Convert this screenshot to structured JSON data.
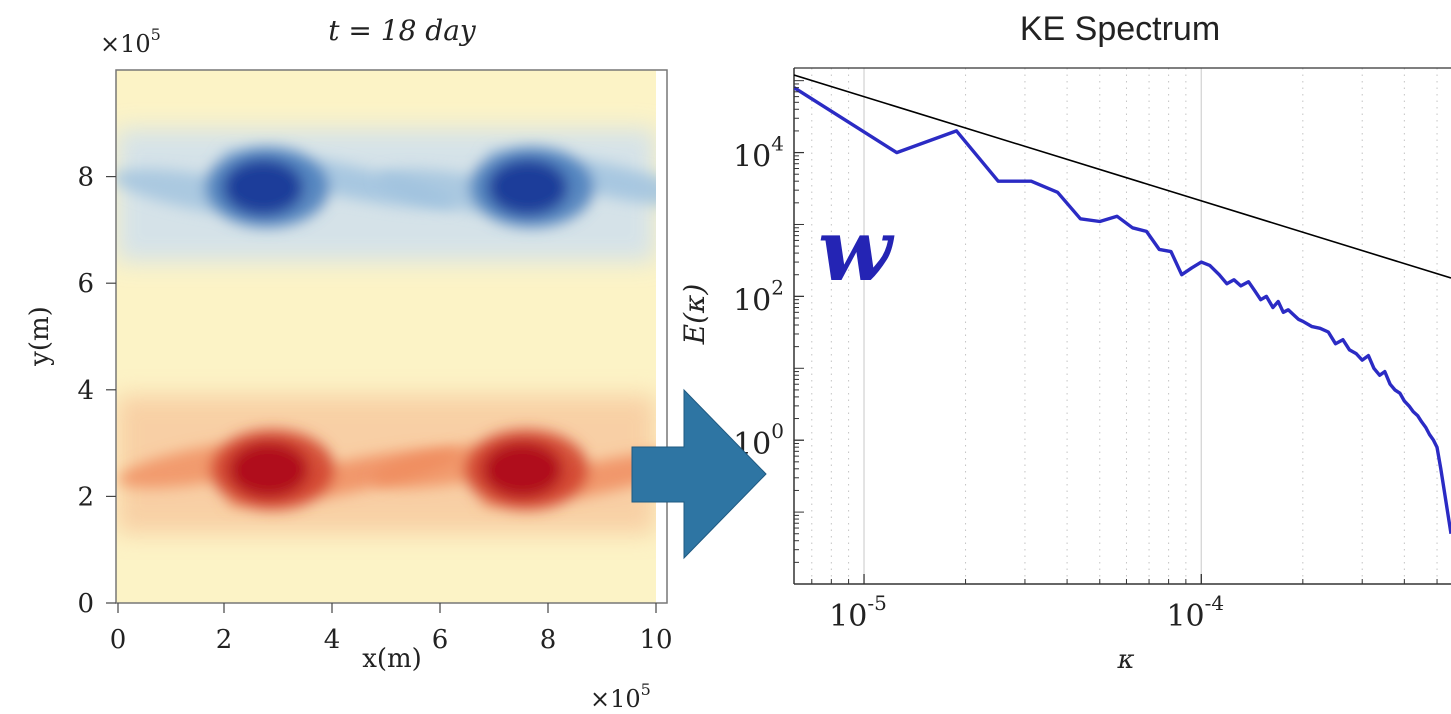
{
  "chart_data": [
    {
      "type": "heatmap",
      "title": "t = 18 day",
      "xlabel": "x(m)",
      "ylabel": "y(m)",
      "x_ticks": [
        "0",
        "2",
        "4",
        "6",
        "8",
        "10"
      ],
      "y_ticks": [
        "0",
        "2",
        "4",
        "6",
        "8"
      ],
      "x_exponent": "×10",
      "x_exponent_power": "5",
      "y_exponent": "×10",
      "y_exponent_power": "5",
      "xlim": [
        0,
        10
      ],
      "ylim": [
        0,
        10
      ],
      "colormap": "diverging red-yellow-blue",
      "colors": {
        "positive": "#b0101a",
        "neutral": "#fdf5cc",
        "negative": "#1f3d9a"
      },
      "features": [
        {
          "sign": "negative",
          "x": 2.8,
          "y": 7.8
        },
        {
          "sign": "negative",
          "x": 7.7,
          "y": 7.8
        },
        {
          "sign": "positive",
          "x": 2.9,
          "y": 2.5
        },
        {
          "sign": "positive",
          "x": 7.6,
          "y": 2.5
        }
      ]
    },
    {
      "type": "line",
      "title": "KE Spectrum",
      "xlabel": "κ",
      "ylabel": "E(κ)",
      "annotation": "w",
      "x_scale": "log",
      "y_scale": "log",
      "xlim": [
        6.2e-06,
        0.00055
      ],
      "ylim": [
        0.01,
        150000
      ],
      "x_ticks": [
        {
          "base": "10",
          "exp": "-5",
          "value": 1e-05
        },
        {
          "base": "10",
          "exp": "-4",
          "value": 0.0001
        }
      ],
      "y_ticks": [
        {
          "base": "10",
          "exp": "4",
          "value": 10000
        },
        {
          "base": "10",
          "exp": "2",
          "value": 100
        },
        {
          "base": "10",
          "exp": "0",
          "value": 1
        }
      ],
      "grid": true,
      "series": [
        {
          "color": "#2b2bc4",
          "x": [
            6.2e-06,
            1.25e-05,
            1.88e-05,
            2.5e-05,
            3.13e-05,
            3.75e-05,
            4.38e-05,
            5e-05,
            5.63e-05,
            6.25e-05,
            6.88e-05,
            7.5e-05,
            8.13e-05,
            8.75e-05,
            9.38e-05,
            0.0001,
            0.000106,
            0.000113,
            0.000119,
            0.000125,
            0.000131,
            0.000138,
            0.000144,
            0.00015,
            0.000156,
            0.000163,
            0.000169,
            0.000175,
            0.000181,
            0.000188,
            0.000194,
            0.0002,
            0.000213,
            0.000225,
            0.000238,
            0.00025,
            0.000263,
            0.000275,
            0.000288,
            0.0003,
            0.000313,
            0.000325,
            0.000338,
            0.00035,
            0.000363,
            0.000375,
            0.000388,
            0.0004,
            0.000413,
            0.000425,
            0.000438,
            0.00045,
            0.000463,
            0.000475,
            0.000488,
            0.0005,
            0.000513,
            0.000525,
            0.00055
          ],
          "y": [
            80000,
            10000,
            20000,
            4000,
            4000,
            2800,
            1200,
            1100,
            1300,
            900,
            800,
            450,
            420,
            200,
            250,
            300,
            270,
            200,
            150,
            170,
            140,
            160,
            120,
            90,
            100,
            70,
            85,
            60,
            65,
            55,
            48,
            45,
            38,
            36,
            32,
            22,
            25,
            18,
            16,
            13,
            15,
            10,
            8,
            9,
            6,
            5,
            4.5,
            3.5,
            3,
            2.5,
            2.2,
            1.8,
            1.5,
            1.2,
            1.0,
            0.8,
            0.4,
            0.2,
            0.05
          ]
        },
        {
          "color": "#000000",
          "x": [
            6.2e-06,
            0.00055
          ],
          "y": [
            120000,
            180
          ]
        }
      ]
    }
  ]
}
